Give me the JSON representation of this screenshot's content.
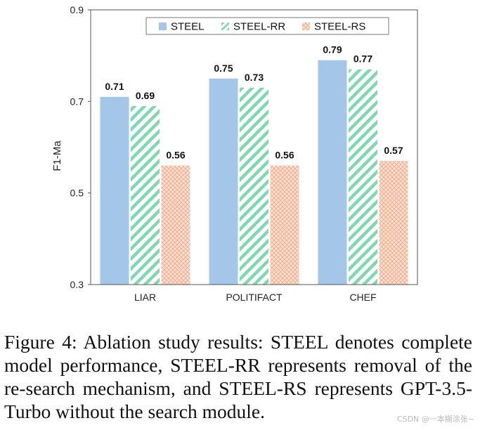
{
  "chart_data": {
    "type": "bar",
    "title": "",
    "xlabel": "",
    "ylabel": "F1-Ma",
    "ylim": [
      0.3,
      0.9
    ],
    "yticks": [
      "0.3",
      "0.5",
      "0.7",
      "0.9"
    ],
    "categories": [
      "LIAR",
      "POLITIFACT",
      "CHEF"
    ],
    "series": [
      {
        "name": "STEEL",
        "values": [
          0.71,
          0.75,
          0.79
        ],
        "labels": [
          "0.71",
          "0.75",
          "0.79"
        ],
        "color": "#a3c6e9",
        "pattern": "solid"
      },
      {
        "name": "STEEL-RR",
        "values": [
          0.69,
          0.73,
          0.77
        ],
        "labels": [
          "0.69",
          "0.73",
          "0.77"
        ],
        "color": "#7dd9b0",
        "pattern": "diagonal"
      },
      {
        "name": "STEEL-RS",
        "values": [
          0.56,
          0.56,
          0.57
        ],
        "labels": [
          "0.56",
          "0.56",
          "0.57"
        ],
        "color": "#f6b79b",
        "pattern": "crosshatch"
      }
    ],
    "legend": "top-center"
  },
  "caption": "Figure 4: Ablation study results: STEEL denotes com­plete model performance, STEEL-RR represents re­moval of the re-search mechanism, and STEEL-RS rep­resents GPT-3.5-Turbo without the search module.",
  "watermark": "CSDN @一本糊涂张~"
}
